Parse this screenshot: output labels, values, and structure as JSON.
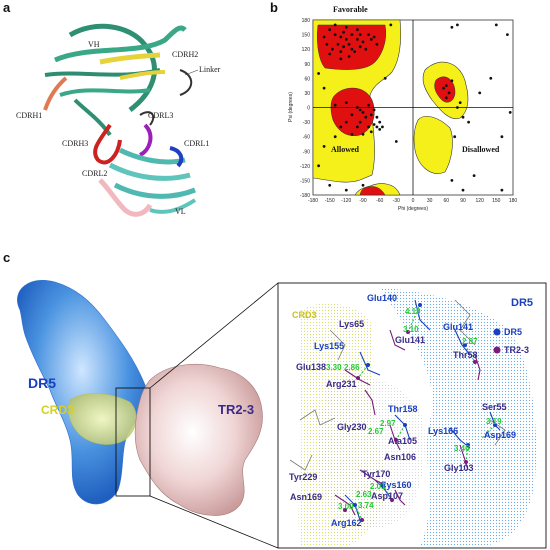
{
  "panels": {
    "a": {
      "letter": "a",
      "labels": {
        "vh": "VH",
        "cdrh2": "CDRH2",
        "linker": "Linker",
        "cdrh1": "CDRH1",
        "cdrl3": "CDRL3",
        "cdrh3": "CDRH3",
        "cdrl1": "CDRL1",
        "cdrl2": "CDRL2",
        "vl": "VL"
      }
    },
    "b": {
      "letter": "b",
      "region_labels": {
        "favorable": "Favorable",
        "allowed": "Allowed",
        "disallowed": "Disallowed"
      },
      "xlabel": "Phi (degrees)",
      "ylabel": "Psi (degrees)",
      "xticks": [
        "-180",
        "-150",
        "-120",
        "-90",
        "-60",
        "-30",
        "0",
        "30",
        "60",
        "90",
        "120",
        "150",
        "180"
      ],
      "yticks": [
        "180",
        "150",
        "120",
        "90",
        "60",
        "30",
        "0",
        "-30",
        "-60",
        "-90",
        "-120",
        "-150",
        "-180"
      ]
    },
    "c": {
      "letter": "c",
      "left_labels": {
        "dr5": "DR5",
        "crd3": "CRD3",
        "tr23": "TR2-3"
      },
      "inset": {
        "crd3": "CRD3",
        "dr5_title": "DR5",
        "legend": [
          {
            "label": "DR5",
            "color": "#1a3fbf"
          },
          {
            "label": "TR2-3",
            "color": "#7a1a7a"
          }
        ],
        "residues": {
          "glu140": "Glu140",
          "lys65": "Lys65",
          "glu141a": "Glu141",
          "glu141b": "Glu141",
          "thr58": "Thr58",
          "lys155": "Lys155",
          "glu138": "Glu138",
          "arg231": "Arg231",
          "thr158": "Thr158",
          "ser55": "Ser55",
          "gly230": "Gly230",
          "ala105": "Ala105",
          "lys166": "Lys166",
          "asp169": "Asp169",
          "asn106": "Asn106",
          "gly103": "Gly103",
          "tyr229": "Tyr229",
          "tyr170": "Tyr170",
          "cys160": "Cys160",
          "asn169": "Asn169",
          "asp107": "Asp107",
          "arg162": "Arg162"
        },
        "distances": {
          "d1": "4.19",
          "d2": "3.10",
          "d3": "2.87",
          "d4": "3.30",
          "d5": "2.86",
          "d6": "2.97",
          "d7": "2.67",
          "d8": "3.19",
          "d9": "3.46",
          "d10": "2.01",
          "d11": "2.63",
          "d12": "3.00",
          "d13": "3.74"
        }
      }
    }
  },
  "chart_data": {
    "type": "scatter",
    "title": "",
    "xlabel": "Phi (degrees)",
    "ylabel": "Psi (degrees)",
    "xlim": [
      -180,
      180
    ],
    "ylim": [
      -180,
      180
    ],
    "region_labels": [
      "Favorable",
      "Allowed",
      "Disallowed"
    ],
    "points": [
      {
        "x": -150,
        "y": 160
      },
      {
        "x": -140,
        "y": 150
      },
      {
        "x": -130,
        "y": 145
      },
      {
        "x": -125,
        "y": 155
      },
      {
        "x": -120,
        "y": 140
      },
      {
        "x": -115,
        "y": 130
      },
      {
        "x": -110,
        "y": 150
      },
      {
        "x": -100,
        "y": 140
      },
      {
        "x": -95,
        "y": 125
      },
      {
        "x": -90,
        "y": 135
      },
      {
        "x": -135,
        "y": 130
      },
      {
        "x": -145,
        "y": 120
      },
      {
        "x": -130,
        "y": 115
      },
      {
        "x": -105,
        "y": 115
      },
      {
        "x": -85,
        "y": 120
      },
      {
        "x": -120,
        "y": 165
      },
      {
        "x": -100,
        "y": 160
      },
      {
        "x": -80,
        "y": 150
      },
      {
        "x": -75,
        "y": 140
      },
      {
        "x": -140,
        "y": 170
      },
      {
        "x": -160,
        "y": 145
      },
      {
        "x": -155,
        "y": 130
      },
      {
        "x": -125,
        "y": 125
      },
      {
        "x": -110,
        "y": 120
      },
      {
        "x": -95,
        "y": 150
      },
      {
        "x": -70,
        "y": 145
      },
      {
        "x": -65,
        "y": 130
      },
      {
        "x": -115,
        "y": 105
      },
      {
        "x": -130,
        "y": 100
      },
      {
        "x": -150,
        "y": 110
      },
      {
        "x": -65,
        "y": -40
      },
      {
        "x": -60,
        "y": -45
      },
      {
        "x": -70,
        "y": -35
      },
      {
        "x": -75,
        "y": -50
      },
      {
        "x": -80,
        "y": -40
      },
      {
        "x": -85,
        "y": -20
      },
      {
        "x": -90,
        "y": -10
      },
      {
        "x": -95,
        "y": -5
      },
      {
        "x": -100,
        "y": 0
      },
      {
        "x": -110,
        "y": -15
      },
      {
        "x": -120,
        "y": -30
      },
      {
        "x": -75,
        "y": -15
      },
      {
        "x": -60,
        "y": -30
      },
      {
        "x": -65,
        "y": -20
      },
      {
        "x": -100,
        "y": -40
      },
      {
        "x": -90,
        "y": -55
      },
      {
        "x": -110,
        "y": -55
      },
      {
        "x": -130,
        "y": -40
      },
      {
        "x": -120,
        "y": 10
      },
      {
        "x": -140,
        "y": 5
      },
      {
        "x": -80,
        "y": 5
      },
      {
        "x": -70,
        "y": -5
      },
      {
        "x": -55,
        "y": -40
      },
      {
        "x": -95,
        "y": -30
      },
      {
        "x": -140,
        "y": -60
      },
      {
        "x": -160,
        "y": -80
      },
      {
        "x": -170,
        "y": -120
      },
      {
        "x": -150,
        "y": -160
      },
      {
        "x": -90,
        "y": -160
      },
      {
        "x": -120,
        "y": -170
      },
      {
        "x": -160,
        "y": 40
      },
      {
        "x": -170,
        "y": 70
      },
      {
        "x": -40,
        "y": 170
      },
      {
        "x": -30,
        "y": -70
      },
      {
        "x": -50,
        "y": 60
      },
      {
        "x": 55,
        "y": 40
      },
      {
        "x": 60,
        "y": 45
      },
      {
        "x": 65,
        "y": 30
      },
      {
        "x": 70,
        "y": 55
      },
      {
        "x": 60,
        "y": 20
      },
      {
        "x": 80,
        "y": 0
      },
      {
        "x": 90,
        "y": -20
      },
      {
        "x": 75,
        "y": -60
      },
      {
        "x": 100,
        "y": -30
      },
      {
        "x": 85,
        "y": 10
      },
      {
        "x": 70,
        "y": -150
      },
      {
        "x": 90,
        "y": -170
      },
      {
        "x": 110,
        "y": -140
      },
      {
        "x": 80,
        "y": 170
      },
      {
        "x": 70,
        "y": 165
      },
      {
        "x": 150,
        "y": 170
      },
      {
        "x": 170,
        "y": 150
      },
      {
        "x": 160,
        "y": -170
      },
      {
        "x": 120,
        "y": 30
      },
      {
        "x": 140,
        "y": 60
      },
      {
        "x": 160,
        "y": -60
      },
      {
        "x": 175,
        "y": -10
      }
    ]
  }
}
